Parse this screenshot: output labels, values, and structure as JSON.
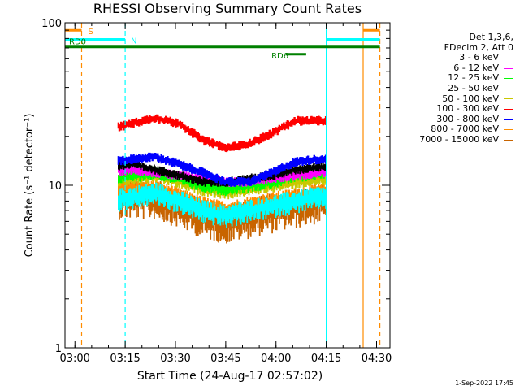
{
  "chart_data": {
    "type": "line",
    "title": "RHESSI Observing Summary Count Rates",
    "xlabel": "Start Time (24-Aug-17 02:57:02)",
    "ylabel": "Count Rate (s⁻¹ detector⁻¹)",
    "y_scale": "log",
    "ylim": [
      1,
      100
    ],
    "xlim": [
      "02:57:02",
      "04:34:00"
    ],
    "x_ticks": [
      "03:00",
      "03:15",
      "03:30",
      "03:45",
      "04:00",
      "04:15",
      "04:30"
    ],
    "y_ticks": [
      "1",
      "10",
      "100"
    ],
    "legend_header": [
      "Det 1,3,6,",
      "FDecim 2, Att 0"
    ],
    "legend_position": "right",
    "data_gap": [
      "03:13",
      "04:15"
    ],
    "series": [
      {
        "name": "3 - 6 keV",
        "color": "#000000",
        "x": [
          "03:10",
          "03:17",
          "03:24",
          "03:31",
          "03:38",
          "03:45",
          "03:52",
          "03:59",
          "04:06",
          "04:13"
        ],
        "values": [
          13,
          13.5,
          12.5,
          11.5,
          10.5,
          10.5,
          11,
          11.5,
          12.5,
          13
        ]
      },
      {
        "name": "6 - 12 keV",
        "color": "#ff00ff",
        "x": [
          "03:10",
          "03:17",
          "03:24",
          "03:31",
          "03:38",
          "03:45",
          "03:52",
          "03:59",
          "04:06",
          "04:13"
        ],
        "values": [
          12,
          12.5,
          12,
          11.5,
          11,
          10.5,
          10.5,
          11,
          11.5,
          12
        ]
      },
      {
        "name": "12 - 25 keV",
        "color": "#00ff00",
        "x": [
          "03:10",
          "03:17",
          "03:24",
          "03:31",
          "03:38",
          "03:45",
          "03:52",
          "03:59",
          "04:06",
          "04:13"
        ],
        "values": [
          11,
          11.5,
          12,
          11,
          10,
          9.5,
          10,
          10.5,
          11.5,
          12
        ]
      },
      {
        "name": "25 - 50 keV",
        "color": "#00ffff",
        "x": [
          "03:10",
          "03:17",
          "03:24",
          "03:31",
          "03:38",
          "03:45",
          "03:52",
          "03:59",
          "04:06",
          "04:13"
        ],
        "values": [
          8,
          8.5,
          9,
          8,
          7,
          6.5,
          7,
          7.5,
          8,
          8.5
        ]
      },
      {
        "name": "50 - 100 keV",
        "color": "#c8c800",
        "x": [
          "03:10",
          "03:17",
          "03:24",
          "03:31",
          "03:38",
          "03:45",
          "03:52",
          "03:59",
          "04:06",
          "04:13"
        ],
        "values": [
          10.5,
          11,
          11.5,
          10.5,
          9.5,
          9,
          9.5,
          10,
          10.5,
          11
        ]
      },
      {
        "name": "100 - 300 keV",
        "color": "#ff0000",
        "x": [
          "03:10",
          "03:17",
          "03:24",
          "03:31",
          "03:38",
          "03:45",
          "03:52",
          "03:59",
          "04:06",
          "04:13"
        ],
        "values": [
          22,
          24,
          26,
          24,
          19,
          17,
          18,
          21,
          25,
          25
        ]
      },
      {
        "name": "300 - 800 keV",
        "color": "#0000ff",
        "x": [
          "03:10",
          "03:17",
          "03:24",
          "03:31",
          "03:38",
          "03:45",
          "03:52",
          "03:59",
          "04:06",
          "04:13"
        ],
        "values": [
          14,
          14.5,
          15,
          13.5,
          12,
          10.5,
          10.5,
          12,
          14,
          14.5
        ]
      },
      {
        "name": "800 - 7000 keV",
        "color": "#ff8c00",
        "x": [
          "03:10",
          "03:17",
          "03:24",
          "03:31",
          "03:38",
          "03:45",
          "03:52",
          "03:59",
          "04:06",
          "04:13"
        ],
        "values": [
          9.5,
          9.5,
          9.5,
          8.5,
          7.5,
          7,
          7.5,
          8,
          8.5,
          9
        ]
      },
      {
        "name": "7000 - 15000 keV",
        "color": "#c86400",
        "x": [
          "03:10",
          "03:17",
          "03:24",
          "03:31",
          "03:38",
          "03:45",
          "03:52",
          "03:59",
          "04:06",
          "04:13"
        ],
        "values": [
          8.5,
          8.5,
          8.5,
          7.5,
          6.5,
          6,
          6.5,
          7,
          7.5,
          8
        ]
      }
    ],
    "annotations": [
      {
        "label": "S",
        "color": "#ff8c00",
        "x_start": "02:57:02",
        "x_end": "03:02",
        "level": 90
      },
      {
        "label": "",
        "color": "#ff8c00",
        "x_start": "04:26",
        "x_end": "04:31",
        "level": 90
      },
      {
        "label": "N",
        "color": "#00ffff",
        "x_start": "02:57:02",
        "x_end": "03:15",
        "level": 79
      },
      {
        "label": "",
        "color": "#00ffff",
        "x_start": "04:15",
        "x_end": "04:31",
        "level": 79
      },
      {
        "label": "RD0",
        "color": "#008000",
        "x_start": "02:57:02",
        "x_end": "04:31",
        "level": 71
      },
      {
        "label": "RD6",
        "color": "#008000",
        "x_start": "04:03",
        "x_end": "04:09",
        "level": 64
      }
    ],
    "vertical_lines": [
      {
        "x": "03:02",
        "color": "#ff8c00",
        "style": "dashed"
      },
      {
        "x": "03:15",
        "color": "#00ffff",
        "style": "dashed"
      },
      {
        "x": "04:15",
        "color": "#00ffff",
        "style": "solid"
      },
      {
        "x": "04:26",
        "color": "#ff8c00",
        "style": "solid"
      },
      {
        "x": "04:31",
        "color": "#ff8c00",
        "style": "dashed"
      }
    ]
  },
  "footer": {
    "timestamp": "1-Sep-2022 17:45"
  }
}
